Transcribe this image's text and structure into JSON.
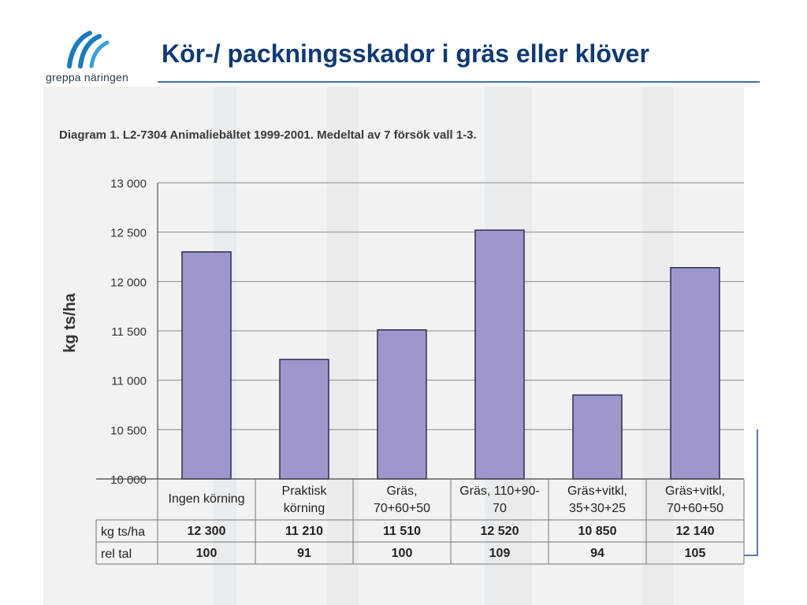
{
  "slide": {
    "title": "Kör-/ packningsskador i gräs eller klöver",
    "logo_text": "greppa näringen"
  },
  "colors": {
    "title": "#0f3a73",
    "bar_fill": "#9d98cc",
    "bar_stroke": "#2e2a55",
    "grid": "#8a8a8a",
    "scan_background": "#f2f2f2",
    "logo_blue": "#1a7bbf"
  },
  "chart_data": {
    "type": "bar",
    "title": "Diagram 1. L2-7304 Animaliebältet 1999-2001. Medeltal av 7 försök vall 1-3.",
    "ylabel": "kg ts/ha",
    "xlabel": "",
    "ylim": [
      10000,
      13000
    ],
    "yticks": [
      {
        "value": 10000,
        "label": "10 000"
      },
      {
        "value": 10500,
        "label": "10 500"
      },
      {
        "value": 11000,
        "label": "11 000"
      },
      {
        "value": 11500,
        "label": "11 500"
      },
      {
        "value": 12000,
        "label": "12 000"
      },
      {
        "value": 12500,
        "label": "12 500"
      },
      {
        "value": 13000,
        "label": "13 000"
      }
    ],
    "grid": true,
    "categories": [
      [
        "Ingen körning"
      ],
      [
        "Praktisk",
        "körning"
      ],
      [
        "Gräs,",
        "70+60+50"
      ],
      [
        "Gräs, 110+90-",
        "70"
      ],
      [
        "Gräs+vitkl,",
        "35+30+25"
      ],
      [
        "Gräs+vitkl,",
        "70+60+50"
      ]
    ],
    "values": [
      12300,
      11210,
      11510,
      12520,
      10850,
      12140
    ],
    "table_rows": [
      {
        "label": "kg ts/ha",
        "cells": [
          "12 300",
          "11 210",
          "11 510",
          "12 520",
          "10 850",
          "12 140"
        ]
      },
      {
        "label": "rel tal",
        "cells": [
          "100",
          "91",
          "100",
          "109",
          "94",
          "105"
        ]
      }
    ]
  }
}
